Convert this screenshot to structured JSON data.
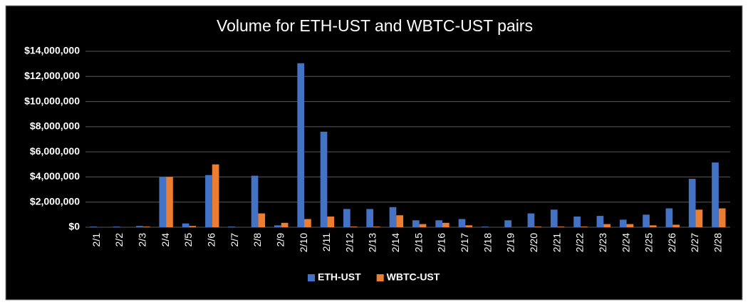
{
  "chart_data": {
    "type": "bar",
    "title": "Volume for ETH-UST and WBTC-UST pairs",
    "categories": [
      "2/1",
      "2/2",
      "2/3",
      "2/4",
      "2/5",
      "2/6",
      "2/7",
      "2/8",
      "2/9",
      "2/10",
      "2/11",
      "2/12",
      "2/13",
      "2/14",
      "2/15",
      "2/16",
      "2/17",
      "2/18",
      "2/19",
      "2/20",
      "2/21",
      "2/22",
      "2/23",
      "2/24",
      "2/25",
      "2/26",
      "2/27",
      "2/28"
    ],
    "series": [
      {
        "name": "ETH-UST",
        "color": "#4472c4",
        "values": [
          50000,
          50000,
          100000,
          4000000,
          300000,
          4150000,
          50000,
          4100000,
          150000,
          13050000,
          7600000,
          1450000,
          1450000,
          1600000,
          550000,
          550000,
          650000,
          50000,
          550000,
          1100000,
          1400000,
          850000,
          900000,
          600000,
          1000000,
          1500000,
          3850000,
          5150000
        ]
      },
      {
        "name": "WBTC-UST",
        "color": "#ed7d31",
        "values": [
          0,
          0,
          50000,
          4000000,
          100000,
          5000000,
          0,
          1100000,
          350000,
          650000,
          850000,
          50000,
          50000,
          950000,
          250000,
          350000,
          150000,
          0,
          0,
          50000,
          50000,
          50000,
          250000,
          250000,
          150000,
          200000,
          1400000,
          1500000
        ]
      }
    ],
    "ylim": [
      0,
      14000000
    ],
    "yticks": [
      {
        "value": 0,
        "label": "$0"
      },
      {
        "value": 2000000,
        "label": "$2,000,000"
      },
      {
        "value": 4000000,
        "label": "$4,000,000"
      },
      {
        "value": 6000000,
        "label": "$6,000,000"
      },
      {
        "value": 8000000,
        "label": "$8,000,000"
      },
      {
        "value": 10000000,
        "label": "$10,000,000"
      },
      {
        "value": 12000000,
        "label": "$12,000,000"
      },
      {
        "value": 14000000,
        "label": "$14,000,000"
      }
    ],
    "grid": true,
    "legend": "bottom"
  }
}
